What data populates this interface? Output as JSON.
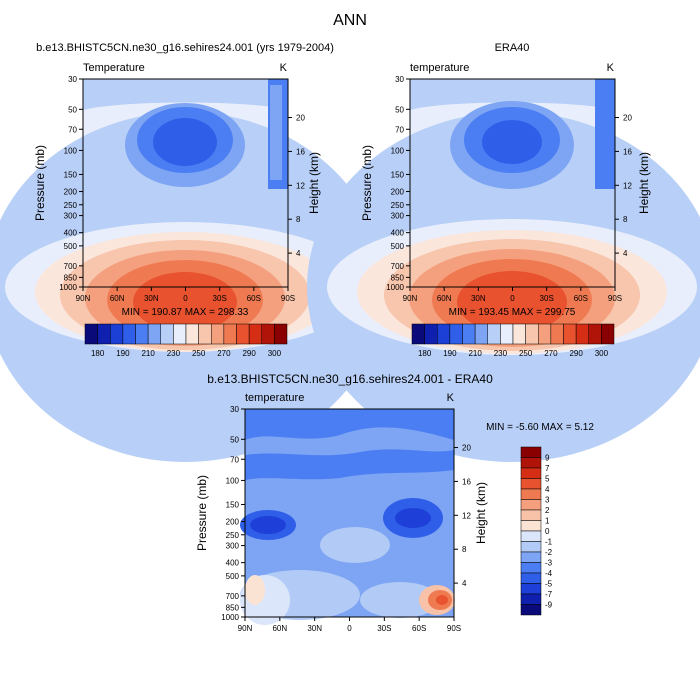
{
  "page_title": "ANN",
  "colors": {
    "temp_scale": [
      "#0a0a7a",
      "#0f1fae",
      "#1c3fd6",
      "#2f5fe8",
      "#4a7ef2",
      "#7ea4f4",
      "#b8cff7",
      "#e8eefb",
      "#fbe6dc",
      "#f8c5ad",
      "#f4a07e",
      "#ef7a52",
      "#e8522e",
      "#d52e14",
      "#b01307",
      "#8a0000"
    ],
    "diff_scale": [
      "#0a0a7a",
      "#0f1fae",
      "#1e40d8",
      "#2f5fe8",
      "#4a7ef2",
      "#7ea4f4",
      "#b2cbf6",
      "#dbe6fa",
      "#fbe3d3",
      "#f8c2a8",
      "#f4a07e",
      "#ef7a52",
      "#e8522e",
      "#d52e14",
      "#b01307",
      "#8a0000"
    ]
  },
  "chart_data": [
    {
      "type": "heatmap",
      "title": "b.e13.BHISTC5CN.ne30_g16.sehires24.001 (yrs 1979-2004)",
      "subtitle_left": "Temperature",
      "units": "K",
      "ylabel": "Pressure (mb)",
      "ylabel_right": "Height (km)",
      "x_ticks": [
        "90N",
        "60N",
        "30N",
        "0",
        "30S",
        "60S",
        "90S"
      ],
      "y_ticks": [
        "30",
        "50",
        "70",
        "100",
        "150",
        "200",
        "250",
        "300",
        "400",
        "500",
        "700",
        "850",
        "1000"
      ],
      "y_ticks_right": [
        "20",
        "16",
        "12",
        "8",
        "4"
      ],
      "stats": "MIN = 190.87  MAX = 298.33",
      "colorbar_labels": [
        "180",
        "190",
        "210",
        "230",
        "250",
        "270",
        "290",
        "300"
      ]
    },
    {
      "type": "heatmap",
      "title": "ERA40",
      "subtitle_left": "temperature",
      "units": "K",
      "ylabel": "Pressure (mb)",
      "ylabel_right": "Height (km)",
      "x_ticks": [
        "90N",
        "60N",
        "30N",
        "0",
        "30S",
        "60S",
        "90S"
      ],
      "y_ticks": [
        "30",
        "50",
        "70",
        "100",
        "150",
        "200",
        "250",
        "300",
        "400",
        "500",
        "700",
        "850",
        "1000"
      ],
      "y_ticks_right": [
        "20",
        "16",
        "12",
        "8",
        "4"
      ],
      "stats": "MIN = 193.45  MAX = 299.75",
      "colorbar_labels": [
        "180",
        "190",
        "210",
        "230",
        "250",
        "270",
        "290",
        "300"
      ]
    },
    {
      "type": "heatmap",
      "title": "b.e13.BHISTC5CN.ne30_g16.sehires24.001 - ERA40",
      "subtitle_left": "temperature",
      "units": "K",
      "ylabel": "Pressure (mb)",
      "ylabel_right": "Height (km)",
      "x_ticks": [
        "90N",
        "60N",
        "30N",
        "0",
        "30S",
        "60S",
        "90S"
      ],
      "y_ticks": [
        "30",
        "50",
        "70",
        "100",
        "150",
        "200",
        "250",
        "300",
        "400",
        "500",
        "700",
        "850",
        "1000"
      ],
      "y_ticks_right": [
        "20",
        "16",
        "12",
        "8",
        "4"
      ],
      "stats": "MIN =  -5.60  MAX =   5.12",
      "colorbar_labels": [
        "9",
        "7",
        "5",
        "4",
        "3",
        "2",
        "1",
        "0",
        "-1",
        "-2",
        "-3",
        "-4",
        "-5",
        "-7",
        "-9"
      ]
    }
  ]
}
